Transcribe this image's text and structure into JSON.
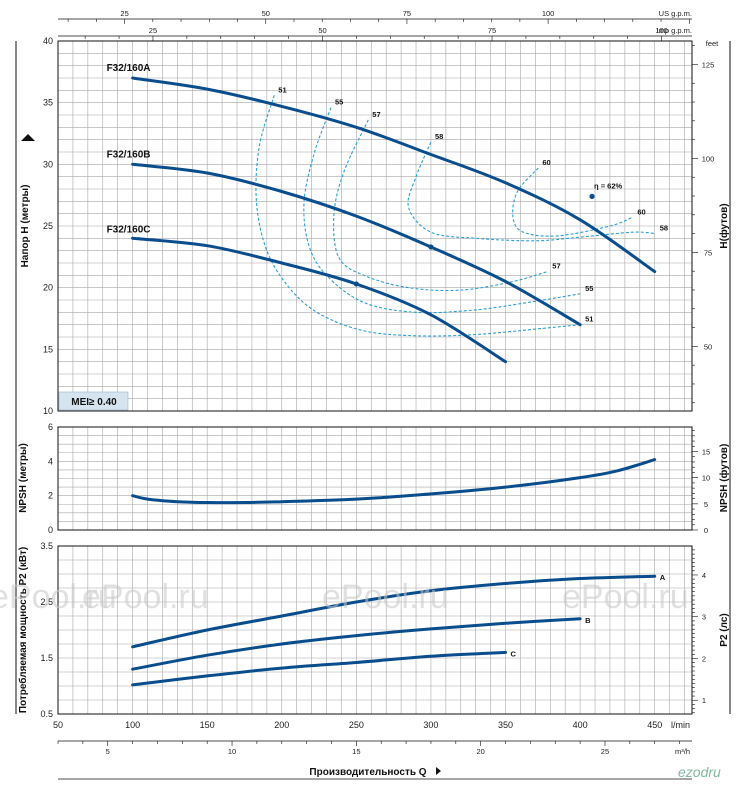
{
  "colors": {
    "curve": "#0a4d8c",
    "efficiency": "#2a9fd6",
    "grid": "#a8a8a8",
    "frame": "#111111",
    "badge_bg": "#d6e4f0",
    "watermark": "#c8c8c8",
    "logo": "#7fb8a0"
  },
  "top_axes": {
    "us_gpm": {
      "unit": "US g.p.m.",
      "ticks": [
        "25",
        "50",
        "75",
        "100"
      ]
    },
    "imp_gpm": {
      "unit": "Imp g.p.m.",
      "ticks": [
        "25",
        "50",
        "75",
        "100"
      ]
    }
  },
  "bottom_axes": {
    "lmin": {
      "unit": "l/min",
      "ticks": [
        "50",
        "100",
        "150",
        "200",
        "250",
        "300",
        "350",
        "400",
        "450"
      ]
    },
    "m3h": {
      "unit": "m³/h",
      "ticks": [
        "5",
        "10",
        "15",
        "20",
        "25"
      ]
    },
    "title": "Производительность Q"
  },
  "badge": "MEI≥ 0.40",
  "watermark": "ePool.ru",
  "logo": "ezodru",
  "chart_data": [
    {
      "type": "line",
      "id": "head",
      "ylabel": "Напор H (метры)",
      "y2label": "H(футов)",
      "y2unit": "feet",
      "xlim": [
        50,
        475
      ],
      "ylim": [
        10,
        40
      ],
      "yticks": [
        "10",
        "15",
        "20",
        "25",
        "30",
        "35",
        "40"
      ],
      "y2ticks": [
        "50",
        "75",
        "100",
        "125"
      ],
      "series": [
        {
          "name": "F32/160A",
          "x": [
            100,
            150,
            200,
            250,
            300,
            350,
            400,
            450
          ],
          "y": [
            37.0,
            36.1,
            34.7,
            33.0,
            30.8,
            28.5,
            25.5,
            21.3
          ]
        },
        {
          "name": "F32/160B",
          "x": [
            100,
            150,
            200,
            250,
            300,
            350,
            400
          ],
          "y": [
            30.0,
            29.3,
            27.8,
            25.8,
            23.3,
            20.5,
            17.0
          ]
        },
        {
          "name": "F32/160C",
          "x": [
            100,
            150,
            200,
            250,
            300,
            350
          ],
          "y": [
            24.0,
            23.4,
            22.0,
            20.3,
            17.8,
            14.0
          ]
        }
      ],
      "efficiency_curves": [
        {
          "label": "51",
          "x": [
            195,
            185,
            183,
            190,
            205,
            225,
            255,
            290,
            330,
            375,
            400
          ],
          "y": [
            35.6,
            31.5,
            27.0,
            23.0,
            20.0,
            17.9,
            16.5,
            16.1,
            16.2,
            16.7,
            17.0
          ]
        },
        {
          "label": "55",
          "x": [
            233,
            222,
            215,
            218,
            230,
            255,
            290,
            330,
            365,
            400
          ],
          "y": [
            34.6,
            31.0,
            27.0,
            23.5,
            21.0,
            18.8,
            18.0,
            18.2,
            18.8,
            19.5
          ]
        },
        {
          "label": "57",
          "x": [
            258,
            242,
            235,
            238,
            255,
            285,
            320,
            355,
            378
          ],
          "y": [
            33.6,
            29.5,
            26.0,
            22.5,
            21.0,
            20.0,
            19.8,
            20.5,
            21.3
          ]
        },
        {
          "label": "58",
          "x": [
            300,
            290,
            285,
            300,
            330,
            370,
            400,
            435,
            450
          ],
          "y": [
            31.8,
            29.0,
            26.5,
            24.5,
            24.0,
            23.8,
            24.1,
            24.5,
            24.4
          ]
        },
        {
          "label": "60",
          "x": [
            372,
            358,
            355,
            362,
            385,
            420,
            435
          ],
          "y": [
            29.7,
            27.8,
            25.7,
            24.5,
            24.2,
            25.0,
            25.7
          ]
        }
      ],
      "efficiency_note": "η = 62%",
      "efficiency_note_point": {
        "x": 408,
        "y": 27.4
      },
      "highlight_points": [
        {
          "x": 300,
          "y": 23.3
        },
        {
          "x": 250,
          "y": 20.3
        },
        {
          "x": 408,
          "y": 27.4
        }
      ]
    },
    {
      "type": "line",
      "id": "npsh",
      "ylabel": "NPSH (метры)",
      "y2label": "NPSH (футов)",
      "xlim": [
        50,
        475
      ],
      "ylim": [
        0,
        6
      ],
      "yticks": [
        "0",
        "2",
        "4",
        "6"
      ],
      "y2ticks": [
        "0",
        "5",
        "10",
        "15"
      ],
      "series": [
        {
          "name": "NPSH",
          "x": [
            100,
            110,
            130,
            150,
            175,
            200,
            250,
            300,
            350,
            400,
            425,
            450
          ],
          "y": [
            2.0,
            1.8,
            1.65,
            1.6,
            1.6,
            1.65,
            1.8,
            2.1,
            2.5,
            3.05,
            3.45,
            4.1
          ]
        }
      ]
    },
    {
      "type": "line",
      "id": "power",
      "ylabel": "Потребляемая мощность P2 (кВт)",
      "y2label": "P2 (лс)",
      "xlim": [
        50,
        475
      ],
      "ylim": [
        0.5,
        3.5
      ],
      "yticks": [
        "0.5",
        "1.5",
        "2.5",
        "3.5"
      ],
      "y2ticks": [
        "1",
        "2",
        "3",
        "4"
      ],
      "series": [
        {
          "name": "A",
          "x": [
            100,
            150,
            200,
            250,
            300,
            350,
            400,
            450
          ],
          "y": [
            1.7,
            2.0,
            2.25,
            2.5,
            2.7,
            2.83,
            2.92,
            2.96
          ]
        },
        {
          "name": "B",
          "x": [
            100,
            150,
            200,
            250,
            300,
            350,
            400
          ],
          "y": [
            1.3,
            1.55,
            1.75,
            1.9,
            2.02,
            2.12,
            2.2
          ]
        },
        {
          "name": "C",
          "x": [
            100,
            150,
            200,
            250,
            300,
            350
          ],
          "y": [
            1.02,
            1.18,
            1.32,
            1.42,
            1.53,
            1.6
          ]
        }
      ]
    }
  ]
}
